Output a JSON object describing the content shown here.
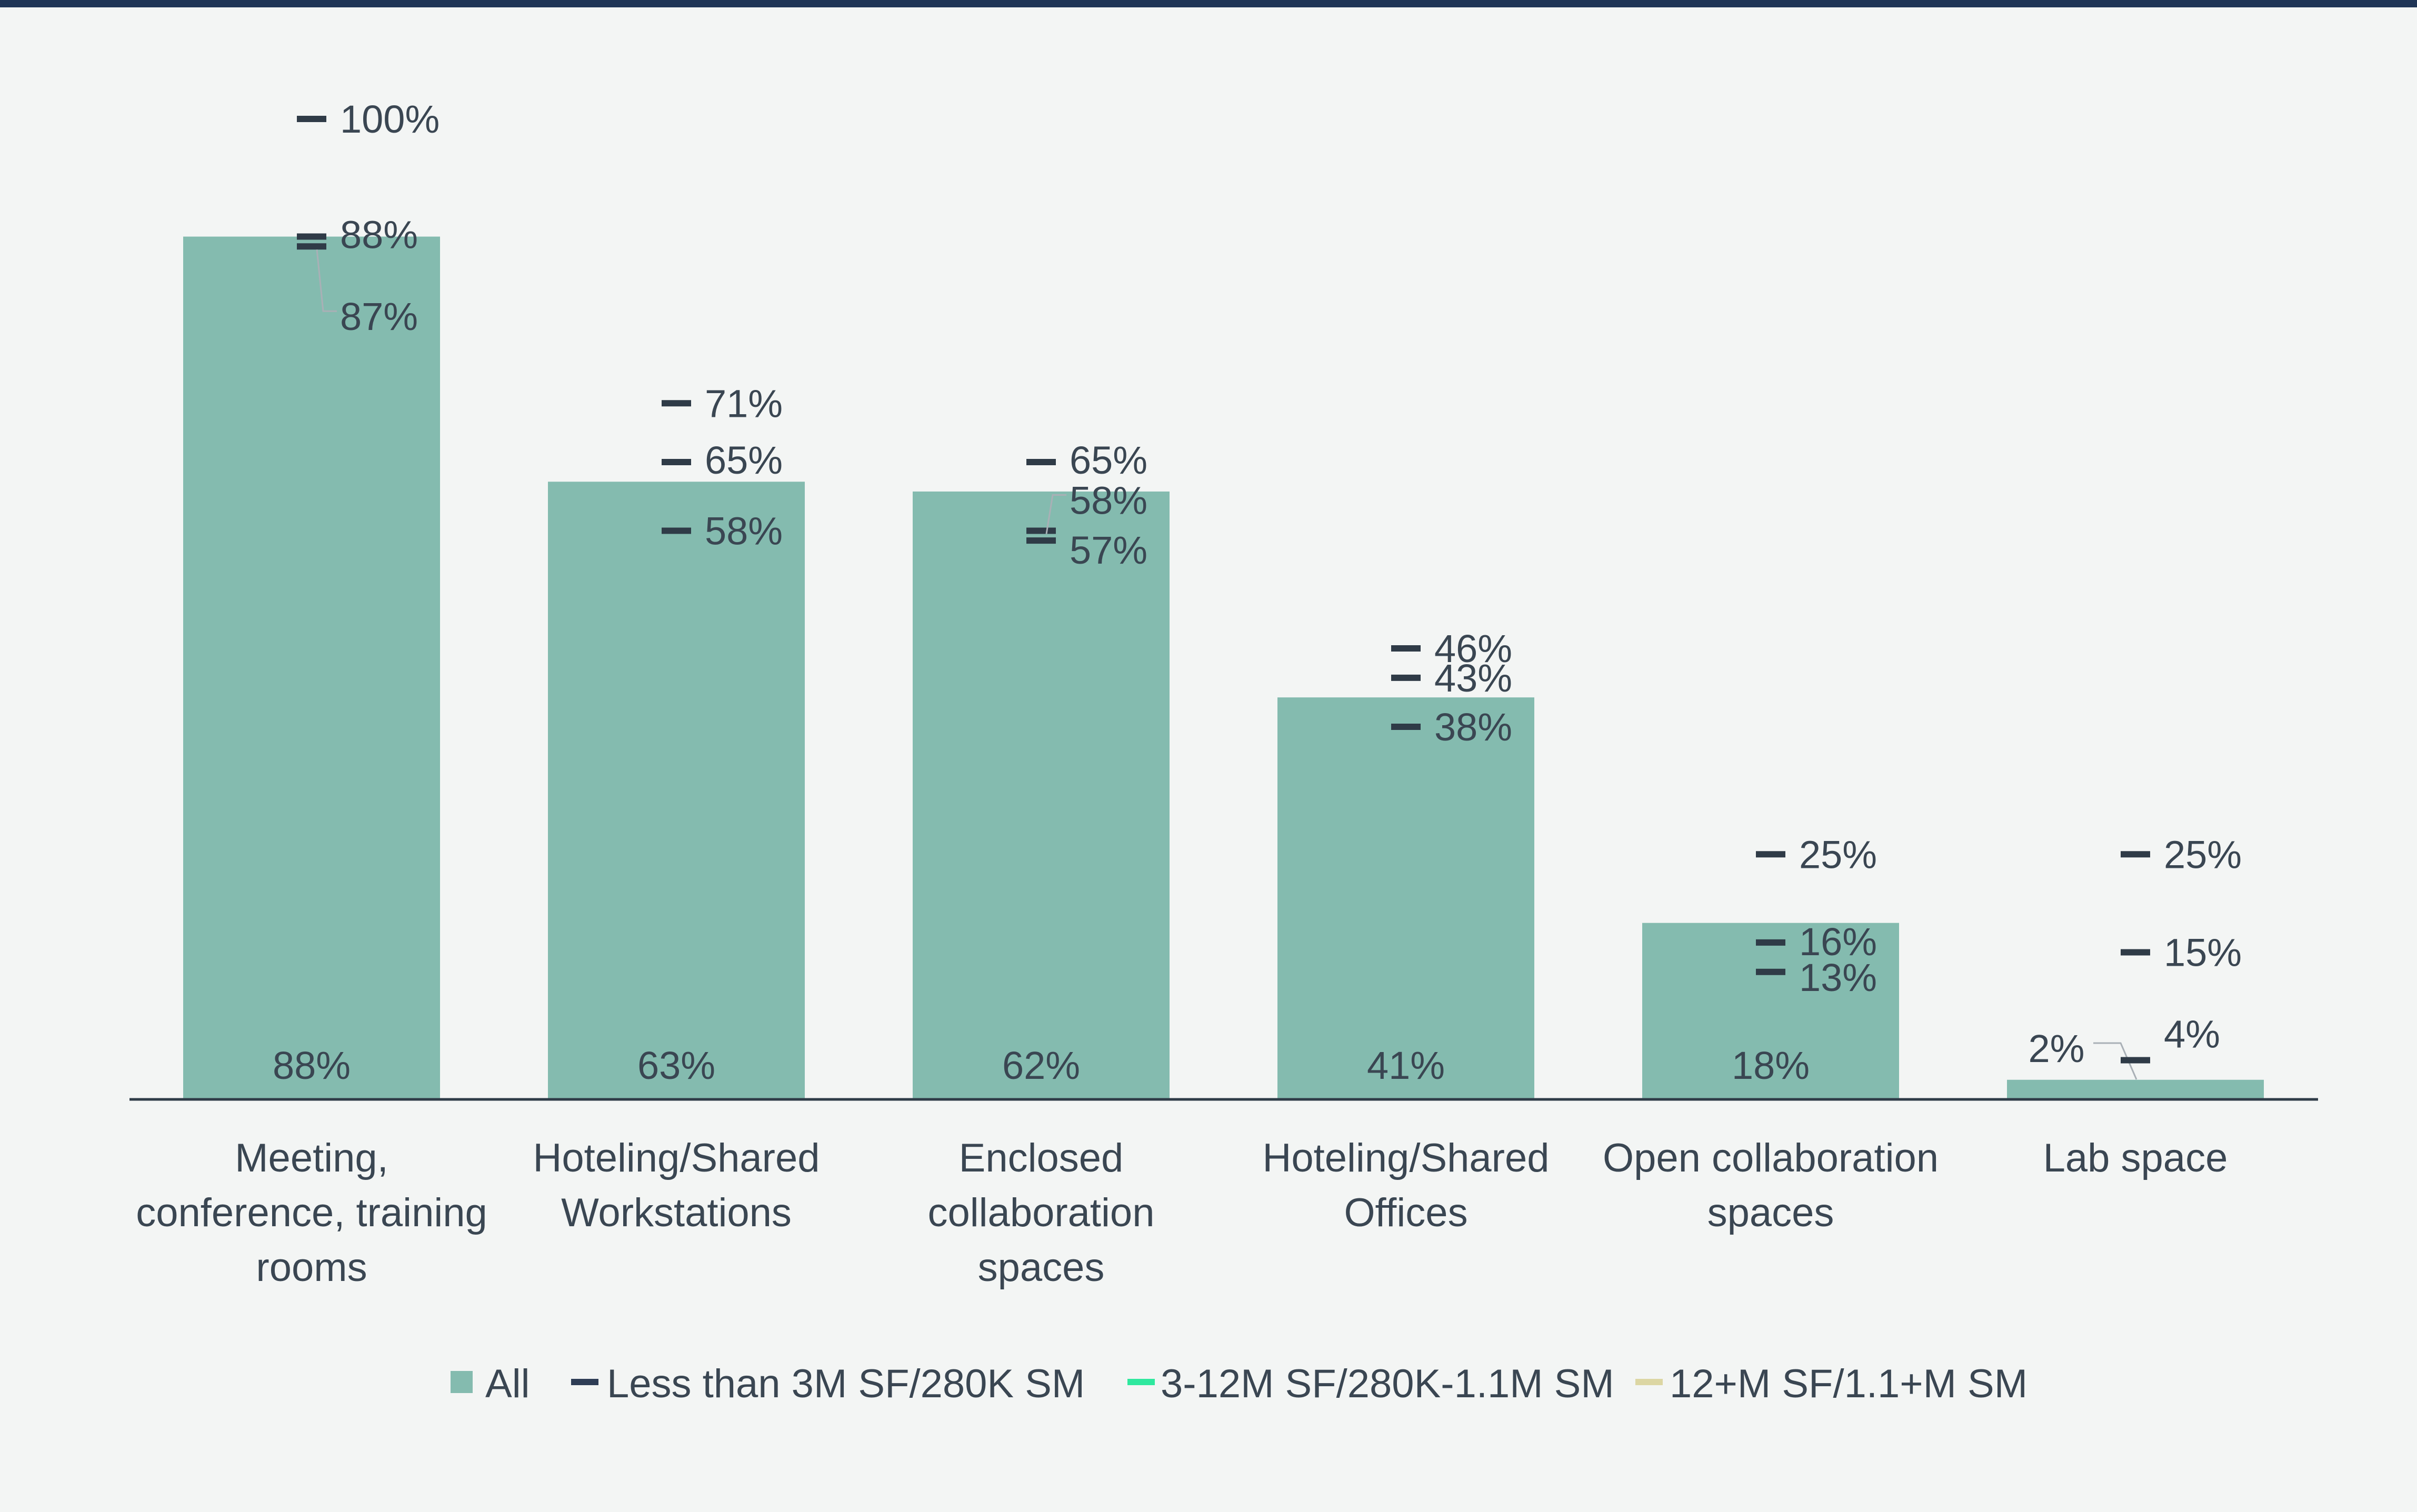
{
  "colors": {
    "all": "#84bbaf",
    "small": "#2e3d55",
    "mid": "#2ee89e",
    "large": "#dcd6a3"
  },
  "chart_data": {
    "type": "bar",
    "categories": [
      [
        "Meeting,",
        "conference, training",
        "rooms"
      ],
      [
        "Hoteling/Shared",
        "Workstations"
      ],
      [
        "Enclosed",
        "collaboration",
        "spaces"
      ],
      [
        "Hoteling/Shared",
        "Offices"
      ],
      [
        "Open collaboration",
        "spaces"
      ],
      [
        "Lab space"
      ]
    ],
    "ylim": [
      0,
      100
    ],
    "series": [
      {
        "name": "All",
        "key": "all",
        "kind": "bar",
        "values": [
          88,
          63,
          62,
          41,
          18,
          2
        ],
        "labels": [
          "88%",
          "63%",
          "62%",
          "41%",
          "18%",
          "2%"
        ]
      },
      {
        "name": "Less than 3M SF/280K SM",
        "key": "small",
        "kind": "marker",
        "values": [
          87,
          65,
          65,
          38,
          16,
          15
        ],
        "labels": [
          "87%",
          "65%",
          "65%",
          "38%",
          "16%",
          "15%"
        ]
      },
      {
        "name": "3-12M SF/280K-1.1M SM",
        "key": "mid",
        "kind": "marker",
        "values": [
          88,
          58,
          58,
          46,
          25,
          4
        ],
        "labels": [
          "88%",
          "58%",
          "58%",
          "46%",
          "25%",
          "4%"
        ]
      },
      {
        "name": "12+M SF/1.1+M SM",
        "key": "large",
        "kind": "marker",
        "values": [
          100,
          71,
          57,
          43,
          13,
          25
        ],
        "labels": [
          "100%",
          "71%",
          "57%",
          "43%",
          "13%",
          "25%"
        ]
      }
    ],
    "legend": "bottom-center"
  }
}
